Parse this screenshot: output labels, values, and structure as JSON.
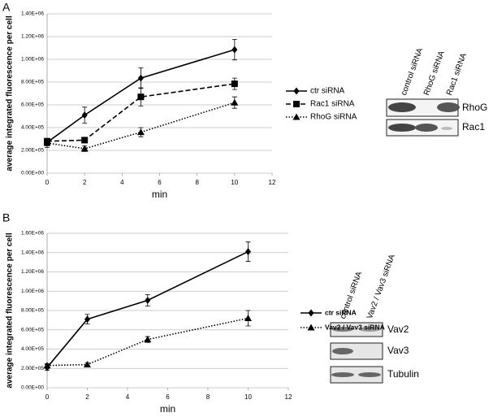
{
  "panels": [
    "A",
    "B"
  ],
  "chart_data": [
    {
      "type": "line",
      "xlabel": "min",
      "ylabel": "average integrated fluorescence per cell",
      "x": [
        0,
        2,
        5,
        10
      ],
      "xlim": [
        0,
        12
      ],
      "xticks": [
        0,
        2,
        4,
        6,
        8,
        10,
        12
      ],
      "ylim": [
        0,
        1400000
      ],
      "yticks": [
        {
          "value": 0,
          "label": "0.00E+00"
        },
        {
          "value": 200000,
          "label": "2.00E+05"
        },
        {
          "value": 400000,
          "label": "4.00E+05"
        },
        {
          "value": 600000,
          "label": "6.00E+05"
        },
        {
          "value": 800000,
          "label": "8.00E+05"
        },
        {
          "value": 1000000,
          "label": "1.00E+06"
        },
        {
          "value": 1200000,
          "label": "1.20E+06"
        },
        {
          "value": 1400000,
          "label": "1.40E+06"
        }
      ],
      "grid": true,
      "legend": "right",
      "series": [
        {
          "name": "ctr siRNA",
          "color": "#000000",
          "dash": "solid",
          "marker": "diamond",
          "values": [
            270000,
            510000,
            835000,
            1085000
          ],
          "error": [
            30000,
            70000,
            90000,
            90000
          ]
        },
        {
          "name": "Rac1 siRNA",
          "color": "#000000",
          "dash": "dashed",
          "marker": "square",
          "values": [
            280000,
            290000,
            670000,
            785000
          ],
          "error": [
            20000,
            20000,
            80000,
            50000
          ]
        },
        {
          "name": "RhoG siRNA",
          "color": "#000000",
          "dash": "dotted",
          "marker": "triangle",
          "values": [
            265000,
            215000,
            360000,
            620000
          ],
          "error": [
            40000,
            25000,
            40000,
            50000
          ]
        }
      ]
    },
    {
      "type": "line",
      "xlabel": "min",
      "ylabel": "average integrated fluorescence per cell",
      "x": [
        0,
        2,
        5,
        10
      ],
      "xlim": [
        0,
        12
      ],
      "xticks": [
        0,
        2,
        4,
        6,
        8,
        10,
        12
      ],
      "ylim": [
        0,
        1600000
      ],
      "yticks": [
        {
          "value": 0,
          "label": "0.00E+00"
        },
        {
          "value": 200000,
          "label": "2.00E+05"
        },
        {
          "value": 400000,
          "label": "4.00E+05"
        },
        {
          "value": 600000,
          "label": "6.00E+05"
        },
        {
          "value": 800000,
          "label": "8.00E+05"
        },
        {
          "value": 1000000,
          "label": "1.00E+06"
        },
        {
          "value": 1200000,
          "label": "1.20E+06"
        },
        {
          "value": 1400000,
          "label": "1.40E+06"
        },
        {
          "value": 1600000,
          "label": "1.60E+06"
        }
      ],
      "grid": true,
      "legend": "right",
      "series": [
        {
          "name": "ctr siRNA",
          "color": "#000000",
          "dash": "solid",
          "marker": "diamond",
          "values": [
            210000,
            710000,
            905000,
            1410000
          ],
          "error": [
            30000,
            50000,
            60000,
            100000
          ]
        },
        {
          "name": "Vav2 / Vav3 siRNA",
          "color": "#000000",
          "dash": "dotted",
          "marker": "triangle",
          "values": [
            230000,
            240000,
            500000,
            720000
          ],
          "error": [
            20000,
            20000,
            30000,
            80000
          ]
        }
      ]
    }
  ],
  "blots": [
    {
      "lanes": [
        "control siRNA",
        "RhoG siRNA",
        "Rac1 siRNA"
      ],
      "rows": [
        "RhoG",
        "Rac1"
      ]
    },
    {
      "lanes": [
        "control siRNA",
        "Vav2 / Vav3 siRNA"
      ],
      "rows": [
        "Vav2",
        "Vav3",
        "Tubulin"
      ]
    }
  ]
}
